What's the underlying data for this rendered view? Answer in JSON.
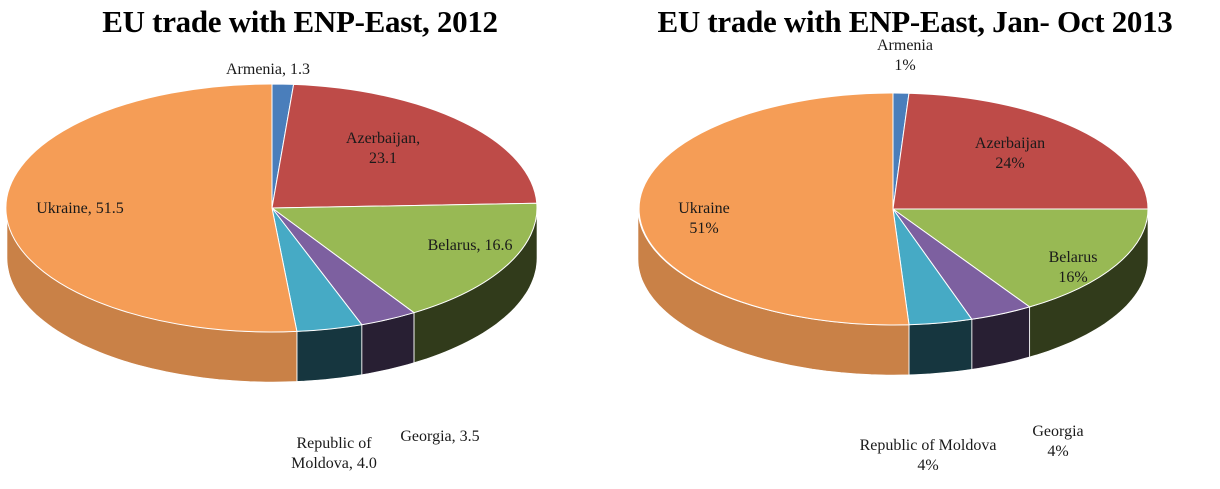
{
  "chart_data": [
    {
      "type": "pie",
      "title": "EU trade with ENP-East, 2012",
      "slices": [
        {
          "name": "Armenia",
          "value": 1.3,
          "label_lines": [
            "Armenia, 1.3"
          ],
          "color": "#4a7ebb"
        },
        {
          "name": "Azerbaijan",
          "value": 23.1,
          "label_lines": [
            "Azerbaijan,",
            "23.1"
          ],
          "color": "#be4b48"
        },
        {
          "name": "Belarus",
          "value": 16.6,
          "label_lines": [
            "Belarus, 16.6"
          ],
          "color": "#98b954"
        },
        {
          "name": "Georgia",
          "value": 3.5,
          "label_lines": [
            "Georgia, 3.5"
          ],
          "color": "#7d60a0"
        },
        {
          "name": "Republic of Moldova",
          "value": 4.0,
          "label_lines": [
            "Republic of",
            "Moldova, 4.0"
          ],
          "color": "#46aac5"
        },
        {
          "name": "Ukraine",
          "value": 51.5,
          "label_lines": [
            "Ukraine, 51.5"
          ],
          "color": "#f59d56"
        }
      ]
    },
    {
      "type": "pie",
      "title": "EU trade with ENP-East, Jan- Oct 2013",
      "slices": [
        {
          "name": "Armenia",
          "value": 1,
          "label_lines": [
            "Armenia",
            "1%"
          ],
          "color": "#4a7ebb"
        },
        {
          "name": "Azerbaijan",
          "value": 24,
          "label_lines": [
            "Azerbaijan",
            "24%"
          ],
          "color": "#be4b48"
        },
        {
          "name": "Belarus",
          "value": 16,
          "label_lines": [
            "Belarus",
            "16%"
          ],
          "color": "#98b954"
        },
        {
          "name": "Georgia",
          "value": 4,
          "label_lines": [
            "Georgia",
            "4%"
          ],
          "color": "#7d60a0"
        },
        {
          "name": "Republic of Moldova",
          "value": 4,
          "label_lines": [
            "Republic of Moldova",
            "4%"
          ],
          "color": "#46aac5"
        },
        {
          "name": "Ukraine",
          "value": 51,
          "label_lines": [
            "Ukraine",
            "51%"
          ],
          "color": "#f59d56"
        }
      ]
    }
  ]
}
